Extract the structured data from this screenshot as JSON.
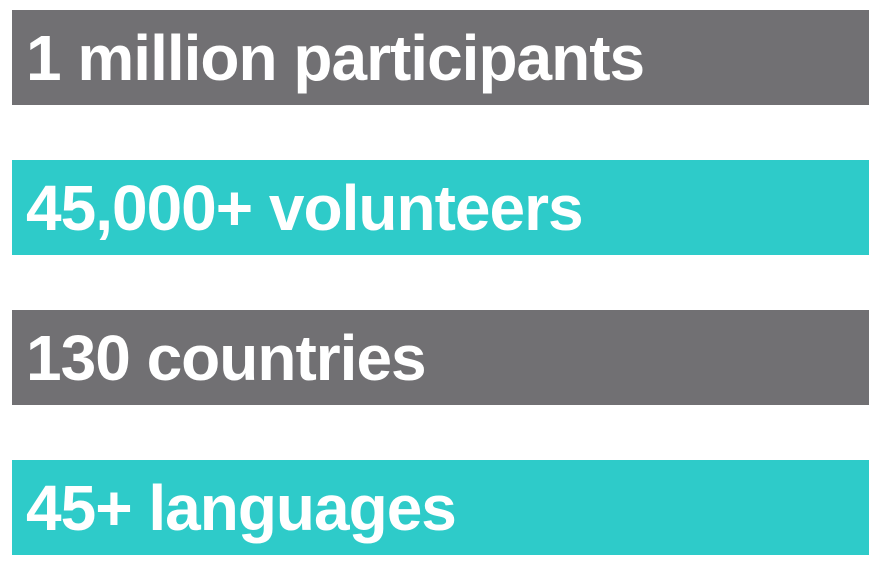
{
  "stats": [
    {
      "label": "1 million participants",
      "color": "#717073"
    },
    {
      "label": "45,000+ volunteers",
      "color": "#2ecbc9"
    },
    {
      "label": "130 countries",
      "color": "#717073"
    },
    {
      "label": "45+ languages",
      "color": "#2ecbc9"
    }
  ]
}
